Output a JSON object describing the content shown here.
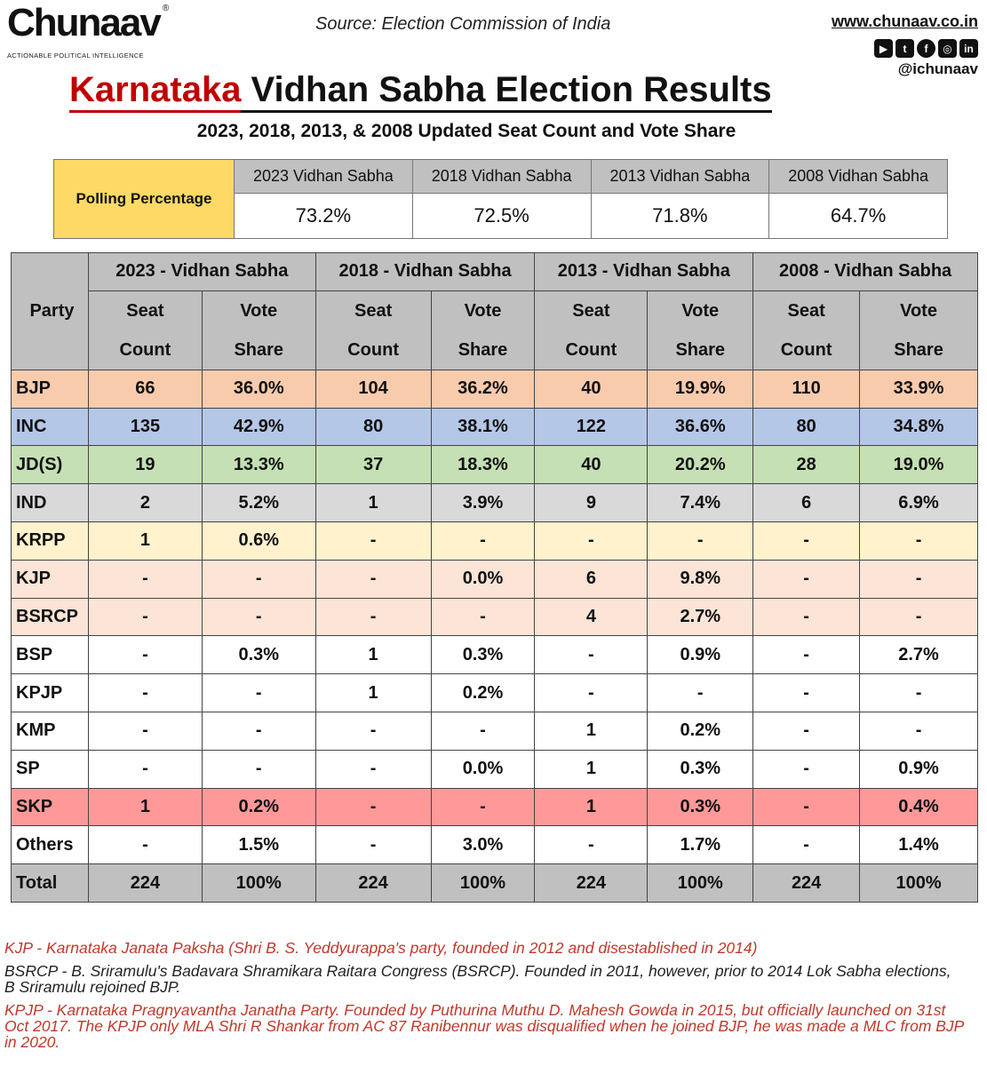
{
  "header": {
    "logo": "Chunaav",
    "logo_reg": "®",
    "logo_tagline": "ACTIONABLE POLITICAL INTELLIGENCE",
    "source": "Source: Election Commission of India",
    "website": "www.chunaav.co.in",
    "social_icons": [
      "youtube-icon",
      "twitter-icon",
      "facebook-icon",
      "instagram-icon",
      "linkedin-icon"
    ],
    "handle": "@ichunaav",
    "title_highlight": "Karnataka",
    "title_rest": " Vidhan Sabha Election Results",
    "subtitle": "2023, 2018, 2013, & 2008 Updated Seat Count and Vote Share"
  },
  "polling": {
    "label": "Polling Percentage",
    "years": [
      "2023 Vidhan Sabha",
      "2018 Vidhan Sabha",
      "2013 Vidhan Sabha",
      "2008 Vidhan Sabha"
    ],
    "values": [
      "73.2%",
      "72.5%",
      "71.8%",
      "64.7%"
    ]
  },
  "results": {
    "party_header": "Party",
    "year_headers": [
      "2023 - Vidhan Sabha",
      "2018 - Vidhan Sabha",
      "2013 - Vidhan Sabha",
      "2008 - Vidhan Sabha"
    ],
    "seat_header": [
      "Seat",
      "Count"
    ],
    "vote_header": [
      "Vote",
      "Share"
    ],
    "rows": [
      {
        "party": "BJP",
        "color": "#f8cbad",
        "cells": [
          "66",
          "36.0%",
          "104",
          "36.2%",
          "40",
          "19.9%",
          "110",
          "33.9%"
        ]
      },
      {
        "party": "INC",
        "color": "#b4c7e7",
        "cells": [
          "135",
          "42.9%",
          "80",
          "38.1%",
          "122",
          "36.6%",
          "80",
          "34.8%"
        ]
      },
      {
        "party": "JD(S)",
        "color": "#c5e0b4",
        "cells": [
          "19",
          "13.3%",
          "37",
          "18.3%",
          "40",
          "20.2%",
          "28",
          "19.0%"
        ]
      },
      {
        "party": "IND",
        "color": "#d9d9d9",
        "cells": [
          "2",
          "5.2%",
          "1",
          "3.9%",
          "9",
          "7.4%",
          "6",
          "6.9%"
        ]
      },
      {
        "party": "KRPP",
        "color": "#fff2cc",
        "cells": [
          "1",
          "0.6%",
          "-",
          "-",
          "-",
          "-",
          "-",
          "-"
        ]
      },
      {
        "party": "KJP",
        "color": "#fce4d6",
        "cells": [
          "-",
          "-",
          "-",
          "0.0%",
          "6",
          "9.8%",
          "-",
          "-"
        ]
      },
      {
        "party": "BSRCP",
        "color": "#fce4d6",
        "cells": [
          "-",
          "-",
          "-",
          "-",
          "4",
          "2.7%",
          "-",
          "-"
        ]
      },
      {
        "party": "BSP",
        "color": "#ffffff",
        "cells": [
          "-",
          "0.3%",
          "1",
          "0.3%",
          "-",
          "0.9%",
          "-",
          "2.7%"
        ]
      },
      {
        "party": "KPJP",
        "color": "#ffffff",
        "cells": [
          "-",
          "-",
          "1",
          "0.2%",
          "-",
          "-",
          "-",
          "-"
        ]
      },
      {
        "party": "KMP",
        "color": "#ffffff",
        "cells": [
          "-",
          "-",
          "-",
          "-",
          "1",
          "0.2%",
          "-",
          "-"
        ]
      },
      {
        "party": "SP",
        "color": "#ffffff",
        "cells": [
          "-",
          "-",
          "-",
          "0.0%",
          "1",
          "0.3%",
          "-",
          "0.9%"
        ]
      },
      {
        "party": "SKP",
        "color": "#ff9999",
        "cells": [
          "1",
          "0.2%",
          "-",
          "-",
          "1",
          "0.3%",
          "-",
          "0.4%"
        ]
      },
      {
        "party": "Others",
        "color": "#ffffff",
        "cells": [
          "-",
          "1.5%",
          "-",
          "3.0%",
          "-",
          "1.7%",
          "-",
          "1.4%"
        ]
      },
      {
        "party": "Total",
        "color": "#c0c0c0",
        "cells": [
          "224",
          "100%",
          "224",
          "100%",
          "224",
          "100%",
          "224",
          "100%"
        ]
      }
    ]
  },
  "notes": [
    {
      "text": "KJP - Karnataka Janata Paksha (Shri B. S. Yeddyurappa's party, founded in 2012 and disestablished in 2014)",
      "color": "#c0392b"
    },
    {
      "text": "BSRCP - B. Sriramulu's Badavara Shramikara Raitara Congress (BSRCP). Founded in 2011, however, prior to 2014 Lok Sabha elections, B Sriramulu rejoined BJP.",
      "color": "#222222"
    },
    {
      "text": "KPJP - Karnataka Pragnyavantha Janatha Party. Founded by Puthurina Muthu D. Mahesh Gowda in 2015, but officially launched on 31st Oct 2017. The KPJP only MLA Shri R Shankar from AC 87 Ranibennur was disqualified when he joined BJP, he was made a MLC from BJP in 2020.",
      "color": "#c0392b"
    }
  ]
}
